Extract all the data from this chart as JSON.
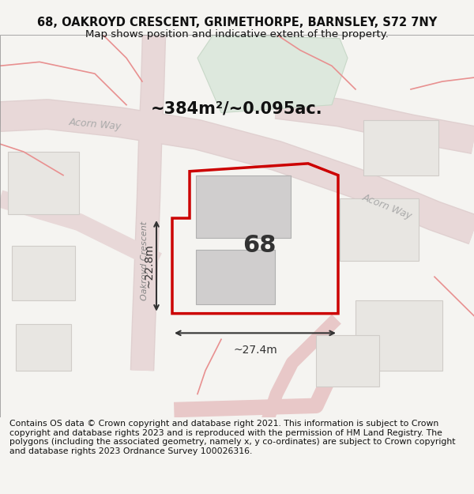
{
  "title_line1": "68, OAKROYD CRESCENT, GRIMETHORPE, BARNSLEY, S72 7NY",
  "title_line2": "Map shows position and indicative extent of the property.",
  "footer_text": "Contains OS data © Crown copyright and database right 2021. This information is subject to Crown copyright and database rights 2023 and is reproduced with the permission of HM Land Registry. The polygons (including the associated geometry, namely x, y co-ordinates) are subject to Crown copyright and database rights 2023 Ordnance Survey 100026316.",
  "area_label": "~384m²/~0.095ac.",
  "width_label": "~27.4m",
  "height_label": "~22.8m",
  "number_label": "68",
  "street_label_v": "Oakroyd Crescent",
  "street_label_h1": "Acorn Way",
  "street_label_h2": "Acorn Way",
  "bg_color": "#f5f4f1",
  "map_bg": "#ffffff",
  "road_color": "#e8d8d8",
  "property_outline_color": "#cc0000",
  "building_fill": "#d8d8d8",
  "green_fill": "#e8f0e8",
  "dim_line_color": "#333333",
  "title_fontsize": 10.5,
  "subtitle_fontsize": 9.5,
  "footer_fontsize": 7.8
}
